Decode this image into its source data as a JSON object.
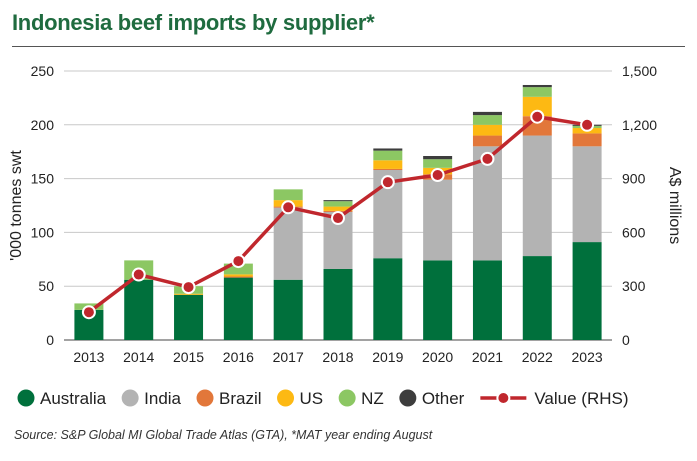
{
  "title": "Indonesia beef imports by supplier*",
  "source": "Source: S&P Global MI Global Trade Atlas (GTA), *MAT year ending August",
  "chart_data": {
    "type": "bar",
    "stacked": true,
    "categories": [
      "2013",
      "2014",
      "2015",
      "2016",
      "2017",
      "2018",
      "2019",
      "2020",
      "2021",
      "2022",
      "2023"
    ],
    "series": [
      {
        "name": "Australia",
        "color": "#00703c",
        "values": [
          28,
          56,
          42,
          58,
          56,
          66,
          76,
          74,
          74,
          78,
          91
        ]
      },
      {
        "name": "India",
        "color": "#b3b3b3",
        "values": [
          0,
          0,
          0,
          0,
          67,
          53,
          82,
          75,
          106,
          112,
          89
        ]
      },
      {
        "name": "Brazil",
        "color": "#e2773a",
        "values": [
          0,
          0,
          0,
          1,
          1,
          1,
          1,
          5,
          10,
          18,
          12
        ]
      },
      {
        "name": "US",
        "color": "#fdb913",
        "values": [
          0,
          0,
          1,
          2,
          6,
          4,
          8,
          6,
          10,
          18,
          5
        ]
      },
      {
        "name": "NZ",
        "color": "#8cc763",
        "values": [
          6,
          18,
          7,
          10,
          10,
          5,
          9,
          8,
          9,
          9,
          2
        ]
      },
      {
        "name": "Other",
        "color": "#3d3d3d",
        "values": [
          0,
          0,
          0,
          0,
          0,
          1,
          2,
          3,
          3,
          2,
          1
        ]
      }
    ],
    "line_series": {
      "name": "Value (RHS)",
      "color": "#c0272d",
      "axis": "right",
      "values": [
        155,
        365,
        295,
        440,
        740,
        680,
        880,
        920,
        1010,
        1245,
        1200
      ]
    },
    "ylabel_left": "'000 tonnes swt",
    "ylabel_right": "A$ millions",
    "ylim_left": [
      0,
      250
    ],
    "ylim_right": [
      0,
      1500
    ],
    "yticks_left": [
      "0",
      "50",
      "100",
      "150",
      "200",
      "250"
    ],
    "yticks_right": [
      "0",
      "300",
      "600",
      "900",
      "1,200",
      "1,500"
    ],
    "grid": true,
    "legend_position": "bottom"
  }
}
